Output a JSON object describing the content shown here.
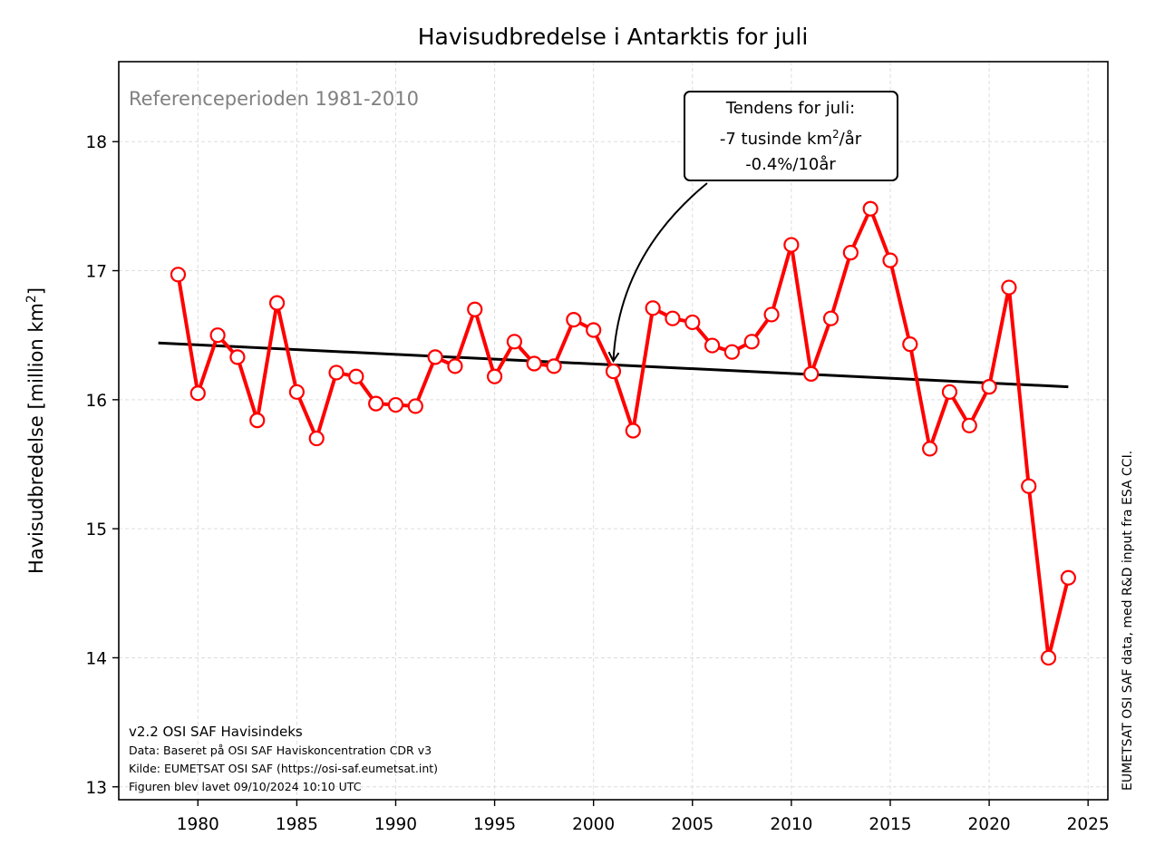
{
  "chart_data": {
    "type": "line",
    "title": "Havisudbredelse i Antarktis for juli",
    "ylabel": "Havisudbredelse [million km²]",
    "xlabel": "",
    "xlim": [
      1976,
      2026
    ],
    "ylim": [
      12.9,
      18.62
    ],
    "xticks": [
      1980,
      1985,
      1990,
      1995,
      2000,
      2005,
      2010,
      2015,
      2020,
      2025
    ],
    "yticks": [
      13,
      14,
      15,
      16,
      17,
      18
    ],
    "grid": true,
    "reference_text": "Referenceperioden 1981-2010",
    "series": [
      {
        "color": "#ff0000",
        "x": [
          1979,
          1980,
          1981,
          1982,
          1983,
          1984,
          1985,
          1986,
          1987,
          1988,
          1989,
          1990,
          1991,
          1992,
          1993,
          1994,
          1995,
          1996,
          1997,
          1998,
          1999,
          2000,
          2001,
          2002,
          2003,
          2004,
          2005,
          2006,
          2007,
          2008,
          2009,
          2010,
          2011,
          2012,
          2013,
          2014,
          2015,
          2016,
          2017,
          2018,
          2019,
          2020,
          2021,
          2022,
          2023,
          2024
        ],
        "y": [
          16.97,
          16.05,
          16.5,
          16.33,
          15.84,
          16.75,
          16.06,
          15.7,
          16.21,
          16.18,
          15.97,
          15.96,
          15.95,
          16.33,
          16.26,
          16.7,
          16.18,
          16.45,
          16.28,
          16.26,
          16.62,
          16.54,
          16.22,
          15.76,
          16.71,
          16.63,
          16.6,
          16.42,
          16.37,
          16.45,
          16.66,
          17.2,
          16.2,
          16.63,
          17.14,
          17.48,
          17.08,
          16.43,
          15.62,
          16.06,
          15.8,
          16.1,
          16.87,
          15.33,
          14.0,
          14.62
        ]
      }
    ],
    "trend": {
      "color": "#000000",
      "x": [
        1978,
        2024
      ],
      "y": [
        16.44,
        16.1
      ]
    },
    "annotation": {
      "line1": "Tendens for juli:",
      "line2_prefix": "-7 tusinde km",
      "line2_sup": "2",
      "line2_suffix": "/år",
      "line3": "-0.4%/10år",
      "target_x": 2001,
      "target_y": 16.3
    },
    "footer": {
      "line1": "v2.2 OSI SAF Havisindeks",
      "line2": "Data: Baseret på OSI SAF Haviskoncentration CDR v3",
      "line3": "Kilde: EUMETSAT OSI SAF (https://osi-saf.eumetsat.int)",
      "line4": "Figuren blev lavet 09/10/2024 10:10 UTC"
    },
    "side_text": "EUMETSAT OSI SAF data, med R&D input fra ESA CCI."
  }
}
